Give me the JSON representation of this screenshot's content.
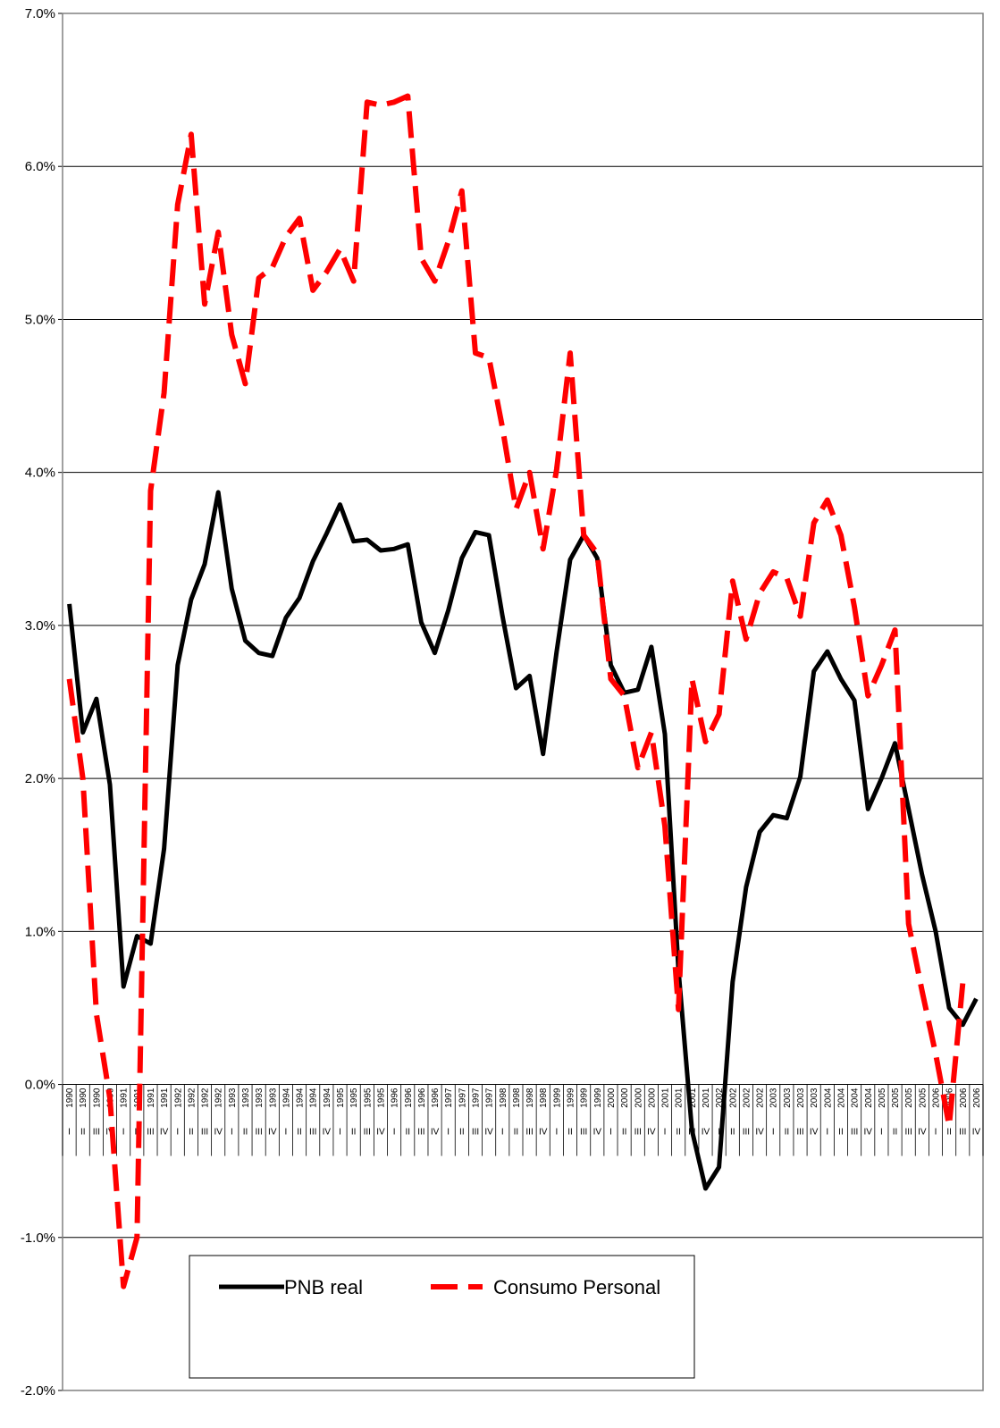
{
  "chart_data": {
    "type": "line",
    "categories": [
      "1990",
      "1990",
      "1990",
      "1990",
      "1991",
      "1991",
      "1991",
      "1991",
      "1992",
      "1992",
      "1992",
      "1992",
      "1993",
      "1993",
      "1993",
      "1993",
      "1994",
      "1994",
      "1994",
      "1994",
      "1995",
      "1995",
      "1995",
      "1995",
      "1996",
      "1996",
      "1996",
      "1996",
      "1997",
      "1997",
      "1997",
      "1997",
      "1998",
      "1998",
      "1998",
      "1998",
      "1999",
      "1999",
      "1999",
      "1999",
      "2000",
      "2000",
      "2000",
      "2000",
      "2001",
      "2001",
      "2001",
      "2001",
      "2002",
      "2002",
      "2002",
      "2002",
      "2003",
      "2003",
      "2003",
      "2003",
      "2004",
      "2004",
      "2004",
      "2004",
      "2005",
      "2005",
      "2005",
      "2005",
      "2006",
      "2006",
      "2006",
      "2006"
    ],
    "subcategories": [
      "I",
      "II",
      "III",
      "IV",
      "I",
      "II",
      "III",
      "IV",
      "I",
      "II",
      "III",
      "IV",
      "I",
      "II",
      "III",
      "IV",
      "I",
      "II",
      "III",
      "IV",
      "I",
      "II",
      "III",
      "IV",
      "I",
      "II",
      "III",
      "IV",
      "I",
      "II",
      "III",
      "IV",
      "I",
      "II",
      "III",
      "IV",
      "I",
      "II",
      "III",
      "IV",
      "I",
      "II",
      "III",
      "IV",
      "I",
      "II",
      "III",
      "IV",
      "I",
      "II",
      "III",
      "IV",
      "I",
      "II",
      "III",
      "IV",
      "I",
      "II",
      "III",
      "IV",
      "I",
      "II",
      "III",
      "IV",
      "I",
      "II",
      "III",
      "IV"
    ],
    "series": [
      {
        "name": "PNB real",
        "color": "#000000",
        "dashed": false,
        "values": [
          3.14,
          2.3,
          2.52,
          1.96,
          0.64,
          0.97,
          0.92,
          1.54,
          2.74,
          3.17,
          3.4,
          3.87,
          3.24,
          2.9,
          2.82,
          2.8,
          3.05,
          3.18,
          3.42,
          3.6,
          3.79,
          3.55,
          3.56,
          3.49,
          3.5,
          3.53,
          3.02,
          2.82,
          3.1,
          3.44,
          3.61,
          3.59,
          3.06,
          2.59,
          2.67,
          2.16,
          2.83,
          3.43,
          3.59,
          3.44,
          2.74,
          2.56,
          2.58,
          2.86,
          2.29,
          0.75,
          -0.3,
          -0.68,
          -0.54,
          0.67,
          1.29,
          1.65,
          1.76,
          1.74,
          2.01,
          2.7,
          2.83,
          2.65,
          2.51,
          1.8,
          2.0,
          2.23,
          1.8,
          1.37,
          1.0,
          0.5,
          0.39,
          0.56
        ]
      },
      {
        "name": "Consumo Personal",
        "color": "#ff0000",
        "dashed": true,
        "values": [
          2.65,
          2.0,
          0.46,
          -0.09,
          -1.32,
          -1.0,
          3.88,
          4.52,
          5.75,
          6.21,
          5.1,
          5.57,
          4.9,
          4.58,
          5.27,
          5.34,
          5.54,
          5.66,
          5.19,
          5.31,
          5.46,
          5.25,
          6.42,
          6.4,
          6.42,
          6.46,
          5.4,
          5.25,
          5.51,
          5.84,
          4.78,
          4.75,
          4.29,
          3.76,
          4.0,
          3.5,
          4.02,
          4.78,
          3.59,
          3.47,
          2.65,
          2.54,
          2.07,
          2.3,
          1.69,
          0.49,
          2.65,
          2.24,
          2.42,
          3.29,
          2.91,
          3.21,
          3.35,
          3.31,
          3.06,
          3.67,
          3.82,
          3.59,
          3.12,
          2.54,
          2.74,
          2.97,
          1.05,
          0.61,
          0.2,
          -0.27,
          0.66,
          null
        ]
      }
    ],
    "ylim": [
      -2,
      7
    ],
    "yticks": [
      {
        "value": -2,
        "label": "-2.0%"
      },
      {
        "value": -1,
        "label": "-1.0%"
      },
      {
        "value": 0,
        "label": "0.0%"
      },
      {
        "value": 1,
        "label": "1.0%"
      },
      {
        "value": 2,
        "label": "2.0%"
      },
      {
        "value": 3,
        "label": "3.0%"
      },
      {
        "value": 4,
        "label": "4.0%"
      },
      {
        "value": 5,
        "label": "5.0%"
      },
      {
        "value": 6,
        "label": "6.0%"
      },
      {
        "value": 7,
        "label": "7.0%"
      }
    ],
    "grid": true,
    "legend": "bottom"
  }
}
